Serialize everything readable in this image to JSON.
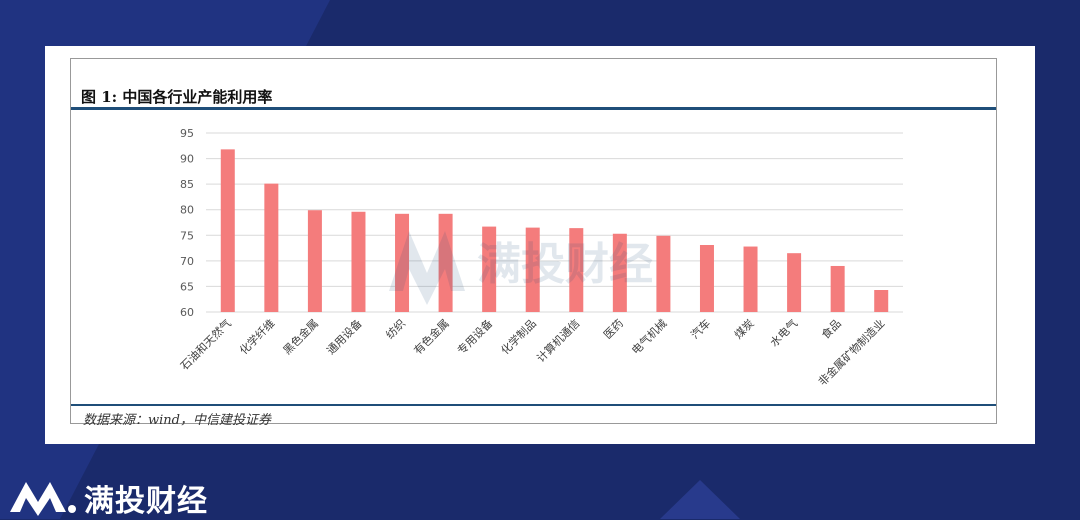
{
  "figure": {
    "title": "图 1: 中国各行业产能利用率",
    "source": "数据来源：wind，中信建投证券"
  },
  "watermark": {
    "text": "满投财经"
  },
  "brand": {
    "name": "满投财经"
  },
  "colors": {
    "bar": "#f47c7c",
    "rule": "#1f4e79",
    "background": "#1a2a6b"
  },
  "chart_data": {
    "type": "bar",
    "categories": [
      "石油和天然气",
      "化学纤维",
      "黑色金属",
      "通用设备",
      "纺织",
      "有色金属",
      "专用设备",
      "化学制品",
      "计算机通信",
      "医药",
      "电气机械",
      "汽车",
      "煤炭",
      "水电气",
      "食品",
      "非金属矿物制造业"
    ],
    "values": [
      91.8,
      85.1,
      79.9,
      79.6,
      79.2,
      79.2,
      76.7,
      76.5,
      76.4,
      75.3,
      74.9,
      73.1,
      72.8,
      71.5,
      69.0,
      64.3
    ],
    "ylim": [
      60,
      95
    ],
    "yticks": [
      60,
      65,
      70,
      75,
      80,
      85,
      90,
      95
    ],
    "grid": true,
    "legend": "none"
  }
}
